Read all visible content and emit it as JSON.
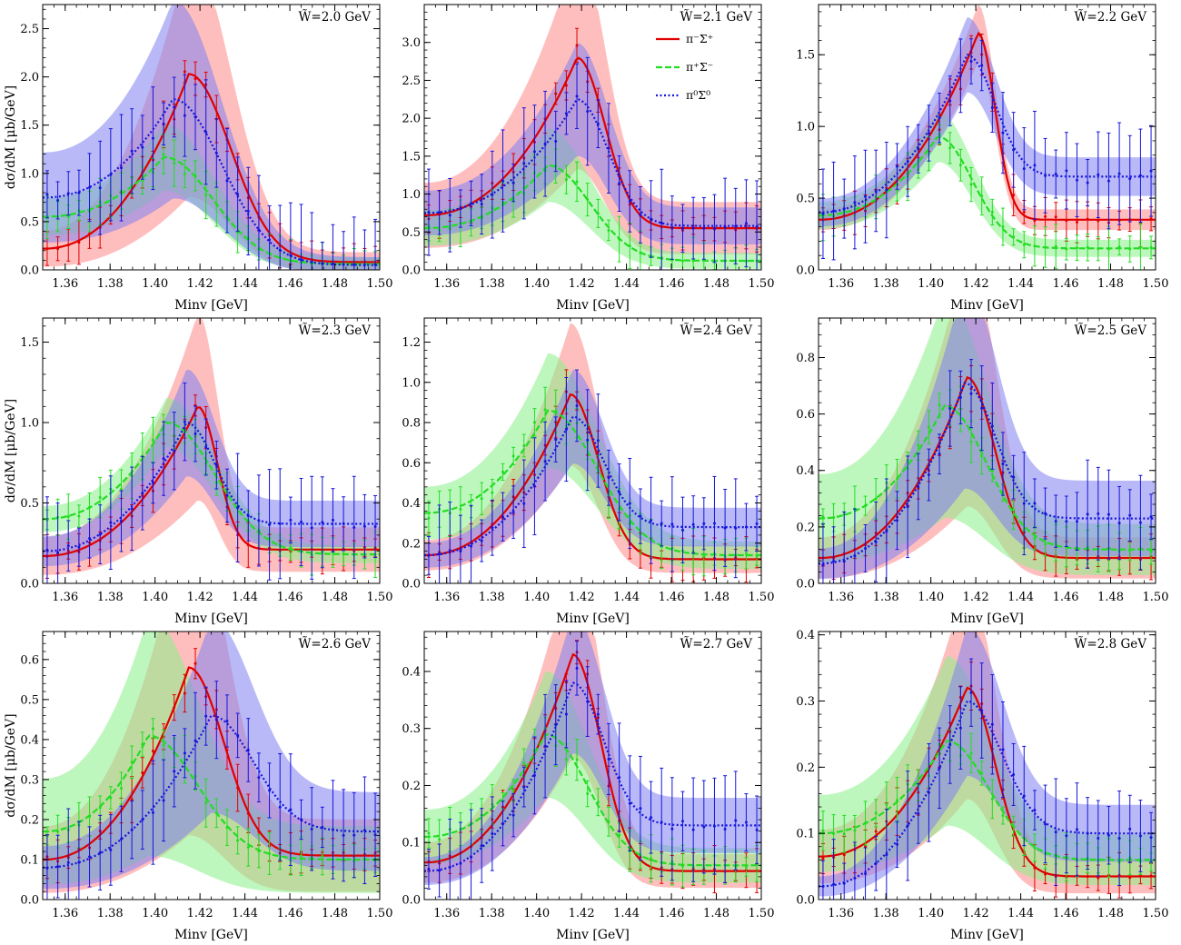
{
  "figure": {
    "ylabel": "dσ/dM [μb/GeV]",
    "xlabel": "Minv [GeV]",
    "xlim": [
      1.35,
      1.5
    ],
    "xticks": [
      1.36,
      1.38,
      1.4,
      1.42,
      1.44,
      1.46,
      1.48,
      1.5
    ]
  },
  "colors": {
    "pim_sigp": "#e00000",
    "pip_sigm": "#22dd22",
    "pi0_sig0": "#1515dd",
    "band_pim_sigp": "#ff8888",
    "band_pip_sigm": "#88f088",
    "band_pi0_sig0": "#8080f0"
  },
  "legend": {
    "items": [
      {
        "key": "pim_sigp",
        "label": "π⁻Σ⁺",
        "style": "solid"
      },
      {
        "key": "pip_sigm",
        "label": "π⁺Σ⁻",
        "style": "dashed"
      },
      {
        "key": "pi0_sig0",
        "label": "π⁰Σ⁰",
        "style": "dotted"
      }
    ]
  },
  "chart_data": [
    {
      "type": "line",
      "title": "W̃=2.0 GeV",
      "ylim": [
        0,
        2.75
      ],
      "yticks": [
        0.0,
        0.5,
        1.0,
        1.5,
        2.0,
        2.5
      ],
      "series": [
        {
          "name": "π⁻Σ⁺",
          "key": "pim_sigp",
          "peak": 1.415,
          "peak_val": 2.03,
          "left_val": 0.22,
          "right_val": 0.08,
          "width": 0.03,
          "band_rel": 0.6
        },
        {
          "name": "π⁺Σ⁻",
          "key": "pip_sigm",
          "peak": 1.404,
          "peak_val": 1.17,
          "left_val": 0.55,
          "right_val": 0.06,
          "width": 0.035,
          "band_rel": 0.25
        },
        {
          "name": "π⁰Σ⁰",
          "key": "pi0_sig0",
          "peak": 1.408,
          "peak_val": 1.77,
          "left_val": 0.75,
          "right_val": 0.05,
          "width": 0.035,
          "band_rel": 0.55
        }
      ]
    },
    {
      "type": "line",
      "title": "W̃=2.1 GeV",
      "ylim": [
        0,
        3.5
      ],
      "yticks": [
        0.0,
        0.5,
        1.0,
        1.5,
        2.0,
        2.5,
        3.0
      ],
      "series": [
        {
          "name": "π⁻Σ⁺",
          "key": "pim_sigp",
          "peak": 1.418,
          "peak_val": 2.8,
          "left_val": 0.72,
          "right_val": 0.55,
          "width": 0.02,
          "band_rel": 0.5
        },
        {
          "name": "π⁺Σ⁻",
          "key": "pip_sigm",
          "peak": 1.405,
          "peak_val": 1.38,
          "left_val": 0.55,
          "right_val": 0.12,
          "width": 0.03,
          "band_rel": 0.3
        },
        {
          "name": "π⁰Σ⁰",
          "key": "pi0_sig0",
          "peak": 1.418,
          "peak_val": 2.25,
          "left_val": 0.75,
          "right_val": 0.58,
          "width": 0.022,
          "band_rel": 0.3
        }
      ]
    },
    {
      "type": "line",
      "title": "W̃=2.2 GeV",
      "ylim": [
        0,
        1.85
      ],
      "yticks": [
        0.0,
        0.5,
        1.0,
        1.5
      ],
      "series": [
        {
          "name": "π⁻Σ⁺",
          "key": "pim_sigp",
          "peak": 1.421,
          "peak_val": 1.65,
          "left_val": 0.35,
          "right_val": 0.35,
          "width": 0.012,
          "band_rel": 0.1
        },
        {
          "name": "π⁺Σ⁻",
          "key": "pip_sigm",
          "peak": 1.403,
          "peak_val": 0.93,
          "left_val": 0.38,
          "right_val": 0.15,
          "width": 0.025,
          "band_rel": 0.15
        },
        {
          "name": "π⁰Σ⁰",
          "key": "pi0_sig0",
          "peak": 1.416,
          "peak_val": 1.5,
          "left_val": 0.4,
          "right_val": 0.65,
          "width": 0.02,
          "band_rel": 0.15
        }
      ]
    },
    {
      "type": "line",
      "title": "W̃=2.3 GeV",
      "ylim": [
        0,
        1.65
      ],
      "yticks": [
        0.0,
        0.5,
        1.0,
        1.5
      ],
      "series": [
        {
          "name": "π⁻Σ⁺",
          "key": "pim_sigp",
          "peak": 1.419,
          "peak_val": 1.1,
          "left_val": 0.17,
          "right_val": 0.21,
          "width": 0.014,
          "band_rel": 0.5
        },
        {
          "name": "π⁺Σ⁻",
          "key": "pip_sigm",
          "peak": 1.405,
          "peak_val": 1.0,
          "left_val": 0.4,
          "right_val": 0.18,
          "width": 0.035,
          "band_rel": 0.12
        },
        {
          "name": "π⁰Σ⁰",
          "key": "pi0_sig0",
          "peak": 1.414,
          "peak_val": 1.0,
          "left_val": 0.2,
          "right_val": 0.37,
          "width": 0.02,
          "band_rel": 0.3
        }
      ]
    },
    {
      "type": "line",
      "title": "W̃=2.4 GeV",
      "ylim": [
        0,
        1.32
      ],
      "yticks": [
        0.0,
        0.2,
        0.4,
        0.6,
        0.8,
        1.0,
        1.2
      ],
      "series": [
        {
          "name": "π⁻Σ⁺",
          "key": "pim_sigp",
          "peak": 1.415,
          "peak_val": 0.94,
          "left_val": 0.14,
          "right_val": 0.12,
          "width": 0.02,
          "band_rel": 0.35
        },
        {
          "name": "π⁺Σ⁻",
          "key": "pip_sigm",
          "peak": 1.405,
          "peak_val": 0.86,
          "left_val": 0.35,
          "right_val": 0.14,
          "width": 0.035,
          "band_rel": 0.3
        },
        {
          "name": "π⁰Σ⁰",
          "key": "pi0_sig0",
          "peak": 1.416,
          "peak_val": 0.83,
          "left_val": 0.14,
          "right_val": 0.28,
          "width": 0.022,
          "band_rel": 0.25
        }
      ]
    },
    {
      "type": "line",
      "title": "W̃=2.5 GeV",
      "ylim": [
        0,
        0.94
      ],
      "yticks": [
        0.0,
        0.2,
        0.4,
        0.6,
        0.8
      ],
      "series": [
        {
          "name": "π⁻Σ⁺",
          "key": "pim_sigp",
          "peak": 1.416,
          "peak_val": 0.73,
          "left_val": 0.09,
          "right_val": 0.09,
          "width": 0.02,
          "band_rel": 0.6
        },
        {
          "name": "π⁺Σ⁻",
          "key": "pip_sigm",
          "peak": 1.406,
          "peak_val": 0.63,
          "left_val": 0.23,
          "right_val": 0.12,
          "width": 0.03,
          "band_rel": 0.6
        },
        {
          "name": "π⁰Σ⁰",
          "key": "pi0_sig0",
          "peak": 1.415,
          "peak_val": 0.71,
          "left_val": 0.07,
          "right_val": 0.23,
          "width": 0.022,
          "band_rel": 0.5
        }
      ]
    },
    {
      "type": "line",
      "title": "W̃=2.6 GeV",
      "ylim": [
        0,
        0.67
      ],
      "yticks": [
        0.0,
        0.1,
        0.2,
        0.3,
        0.4,
        0.5,
        0.6
      ],
      "series": [
        {
          "name": "π⁻Σ⁺",
          "key": "pim_sigp",
          "peak": 1.415,
          "peak_val": 0.58,
          "left_val": 0.1,
          "right_val": 0.11,
          "width": 0.025,
          "band_rel": 0.7
        },
        {
          "name": "π⁺Σ⁻",
          "key": "pip_sigm",
          "peak": 1.397,
          "peak_val": 0.41,
          "left_val": 0.17,
          "right_val": 0.1,
          "width": 0.035,
          "band_rel": 0.7
        },
        {
          "name": "π⁰Σ⁰",
          "key": "pi0_sig0",
          "peak": 1.425,
          "peak_val": 0.46,
          "left_val": 0.08,
          "right_val": 0.17,
          "width": 0.03,
          "band_rel": 0.5
        }
      ]
    },
    {
      "type": "line",
      "title": "W̃=2.7 GeV",
      "ylim": [
        0,
        0.47
      ],
      "yticks": [
        0.0,
        0.1,
        0.2,
        0.3,
        0.4
      ],
      "series": [
        {
          "name": "π⁻Σ⁺",
          "key": "pim_sigp",
          "peak": 1.416,
          "peak_val": 0.43,
          "left_val": 0.065,
          "right_val": 0.05,
          "width": 0.02,
          "band_rel": 0.4
        },
        {
          "name": "π⁺Σ⁻",
          "key": "pip_sigm",
          "peak": 1.404,
          "peak_val": 0.29,
          "left_val": 0.11,
          "right_val": 0.06,
          "width": 0.03,
          "band_rel": 0.35
        },
        {
          "name": "π⁰Σ⁰",
          "key": "pi0_sig0",
          "peak": 1.416,
          "peak_val": 0.38,
          "left_val": 0.05,
          "right_val": 0.13,
          "width": 0.022,
          "band_rel": 0.3
        }
      ]
    },
    {
      "type": "line",
      "title": "W̃=2.8 GeV",
      "ylim": [
        0,
        0.405
      ],
      "yticks": [
        0.0,
        0.1,
        0.2,
        0.3,
        0.4
      ],
      "series": [
        {
          "name": "π⁻Σ⁺",
          "key": "pim_sigp",
          "peak": 1.416,
          "peak_val": 0.32,
          "left_val": 0.065,
          "right_val": 0.035,
          "width": 0.02,
          "band_rel": 0.5
        },
        {
          "name": "π⁺Σ⁻",
          "key": "pip_sigm",
          "peak": 1.407,
          "peak_val": 0.24,
          "left_val": 0.1,
          "right_val": 0.06,
          "width": 0.03,
          "band_rel": 0.5
        },
        {
          "name": "π⁰Σ⁰",
          "key": "pi0_sig0",
          "peak": 1.416,
          "peak_val": 0.3,
          "left_val": 0.02,
          "right_val": 0.1,
          "width": 0.025,
          "band_rel": 0.35
        }
      ]
    }
  ]
}
